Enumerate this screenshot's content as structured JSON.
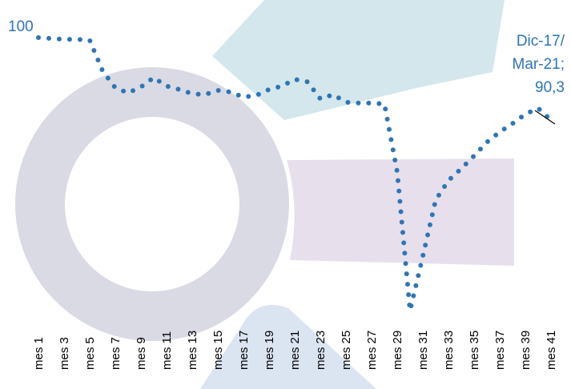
{
  "chart_data": {
    "type": "line",
    "categories": [
      "mes 1",
      null,
      "mes 3",
      null,
      "mes 5",
      null,
      "mes 7",
      null,
      "mes 9",
      null,
      "mes 11",
      null,
      "mes 13",
      null,
      "mes 15",
      null,
      "mes 17",
      null,
      "mes 19",
      null,
      "mes 21",
      null,
      "mes 23",
      null,
      "mes 25",
      null,
      "mes 27",
      null,
      "mes 29",
      null,
      "mes 31",
      null,
      "mes 33",
      null,
      "mes 35",
      null,
      "mes 37",
      null,
      "mes 39",
      null,
      "mes 41"
    ],
    "series": [
      {
        "color": "#2e75b6",
        "values": [
          100,
          99.9,
          99.8,
          99.8,
          99.7,
          96.1,
          94.1,
          93.5,
          94.2,
          95.3,
          94.3,
          93.9,
          93.4,
          93.3,
          93.8,
          93.6,
          93.0,
          93.2,
          93.9,
          94.3,
          95.1,
          94.8,
          92.8,
          93.3,
          92.4,
          92.3,
          92.3,
          92.2,
          84.2,
          67.9,
          74.3,
          80.9,
          83.2,
          84.6,
          86.1,
          87.7,
          88.9,
          89.9,
          91.0,
          91.7,
          90.3
        ],
        "value_labels": [
          "100",
          null,
          null,
          null,
          null,
          null,
          null,
          null,
          null,
          null,
          null,
          null,
          null,
          null,
          null,
          null,
          null,
          null,
          null,
          null,
          null,
          null,
          null,
          null,
          null,
          null,
          null,
          null,
          null,
          null,
          null,
          null,
          null,
          null,
          null,
          null,
          null,
          null,
          null,
          null,
          "90,3"
        ]
      }
    ],
    "annotations": [
      "Dic-17/",
      "Mar-21;"
    ]
  }
}
